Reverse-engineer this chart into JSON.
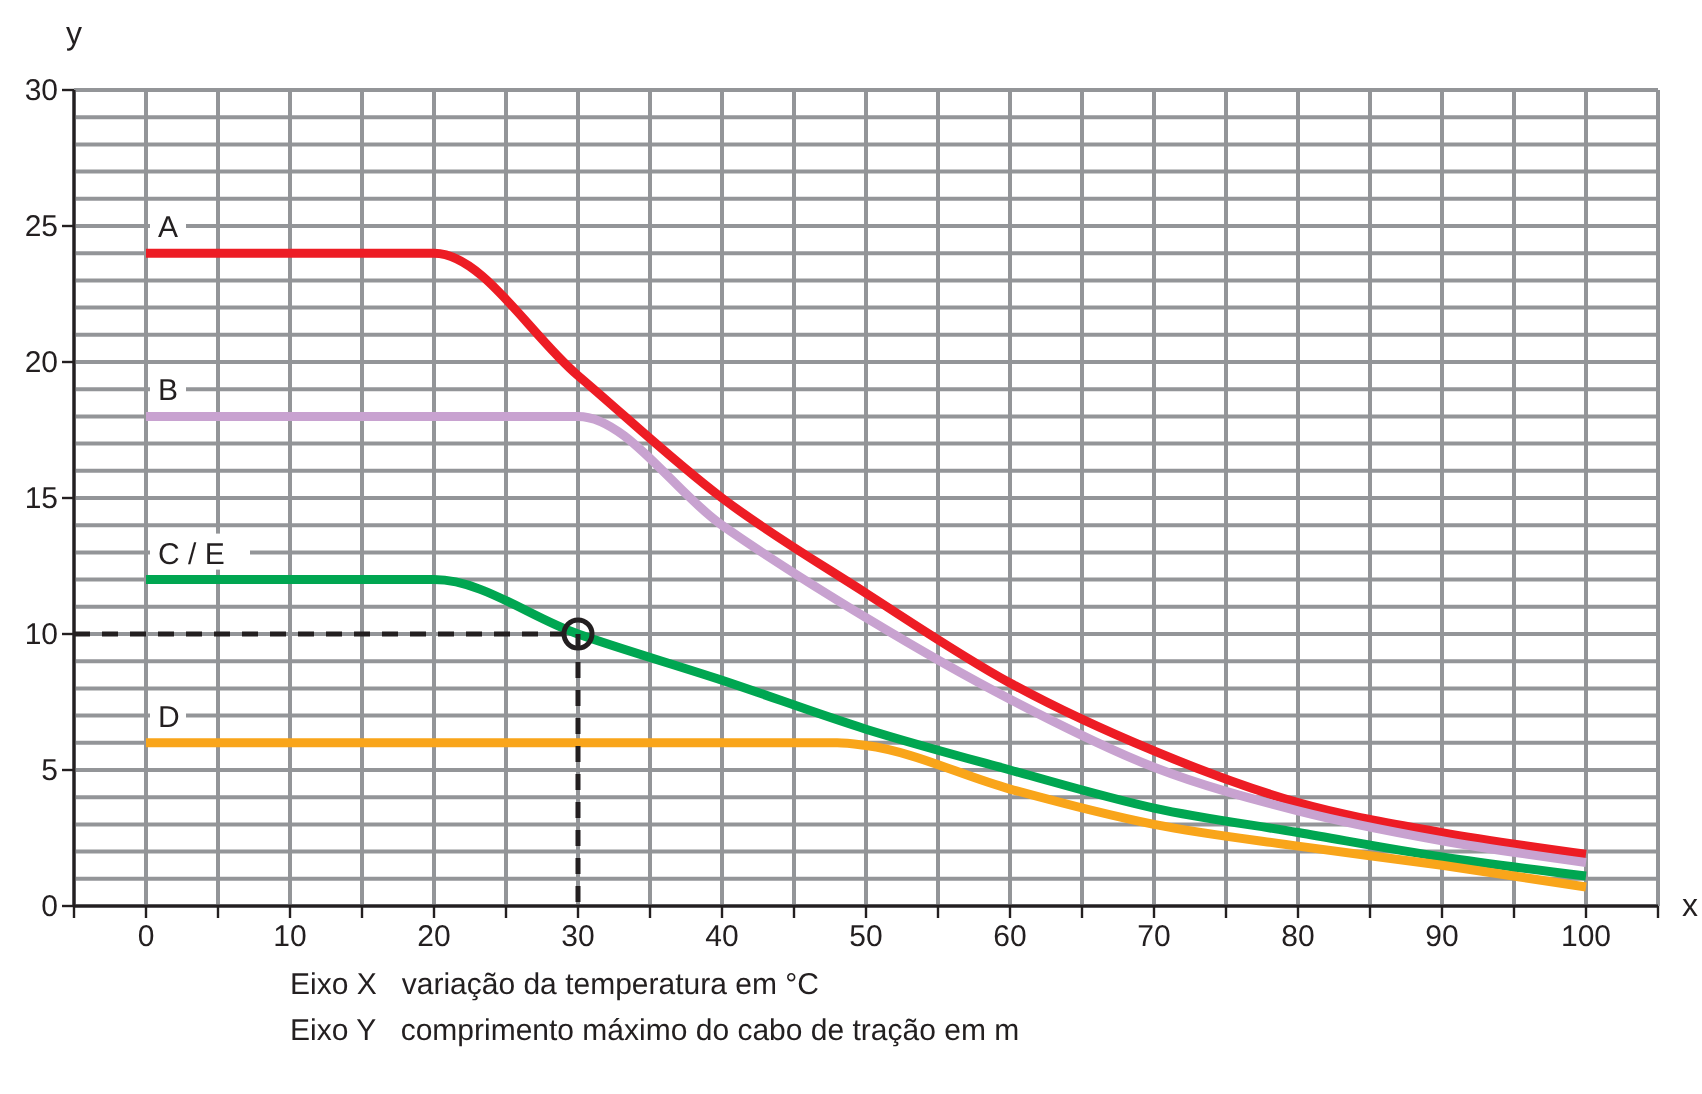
{
  "chart_data": {
    "type": "line",
    "xlabel": "x",
    "ylabel": "y",
    "xlim": [
      -5,
      105
    ],
    "ylim": [
      0,
      30
    ],
    "xticks": [
      {
        "value": -5,
        "label": null
      },
      0,
      {
        "value": 5,
        "label": null
      },
      10,
      {
        "value": 15,
        "label": null
      },
      20,
      {
        "value": 25,
        "label": null
      },
      30,
      {
        "value": 35,
        "label": null
      },
      40,
      {
        "value": 45,
        "label": null
      },
      50,
      {
        "value": 55,
        "label": null
      },
      60,
      {
        "value": 65,
        "label": null
      },
      70,
      {
        "value": 75,
        "label": null
      },
      80,
      {
        "value": 85,
        "label": null
      },
      90,
      {
        "value": 95,
        "label": null
      },
      100,
      {
        "value": 105,
        "label": null
      }
    ],
    "yticks": [
      0,
      {
        "value": 1,
        "label": null
      },
      {
        "value": 2,
        "label": null
      },
      {
        "value": 3,
        "label": null
      },
      {
        "value": 4,
        "label": null
      },
      5,
      {
        "value": 6,
        "label": null
      },
      {
        "value": 7,
        "label": null
      },
      {
        "value": 8,
        "label": null
      },
      {
        "value": 9,
        "label": null
      },
      10,
      {
        "value": 11,
        "label": null
      },
      {
        "value": 12,
        "label": null
      },
      {
        "value": 13,
        "label": null
      },
      {
        "value": 14,
        "label": null
      },
      15,
      {
        "value": 16,
        "label": null
      },
      {
        "value": 17,
        "label": null
      },
      {
        "value": 18,
        "label": null
      },
      {
        "value": 19,
        "label": null
      },
      20,
      {
        "value": 21,
        "label": null
      },
      {
        "value": 22,
        "label": null
      },
      {
        "value": 23,
        "label": null
      },
      {
        "value": 24,
        "label": null
      },
      25,
      {
        "value": 26,
        "label": null
      },
      {
        "value": 27,
        "label": null
      },
      {
        "value": 28,
        "label": null
      },
      {
        "value": 29,
        "label": null
      },
      30
    ],
    "grid": true,
    "marker": "none",
    "line_style": "solid",
    "series": [
      {
        "name": "A",
        "color": "#ed1c24",
        "x": [
          0,
          20,
          30,
          40,
          50,
          60,
          70,
          80,
          90,
          100
        ],
        "values": [
          24,
          24,
          19.5,
          15,
          11.5,
          8.2,
          5.7,
          3.8,
          2.7,
          1.9
        ]
      },
      {
        "name": "B",
        "color": "#c8a2d0",
        "x": [
          0,
          30,
          40,
          50,
          60,
          70,
          80,
          90,
          100
        ],
        "values": [
          18,
          18,
          14,
          10.6,
          7.6,
          5.1,
          3.5,
          2.4,
          1.6
        ]
      },
      {
        "name": "C / E",
        "color": "#00a651",
        "x": [
          0,
          20,
          30,
          40,
          50,
          60,
          70,
          80,
          90,
          100
        ],
        "values": [
          12,
          12,
          10,
          8.3,
          6.5,
          5,
          3.6,
          2.7,
          1.8,
          1.1
        ]
      },
      {
        "name": "D",
        "color": "#f9a51a",
        "x": [
          0,
          48,
          50,
          60,
          70,
          80,
          90,
          100
        ],
        "values": [
          6,
          6,
          5.9,
          4.3,
          3,
          2.2,
          1.5,
          0.7
        ]
      },
      {
        "type": "line",
        "color": "#231f20",
        "line_style": "dashed",
        "x": [
          -5,
          30,
          30
        ],
        "values": [
          10,
          10,
          0
        ]
      },
      {
        "type": "scatter",
        "color": "#231f20",
        "marker": "circle",
        "x": [
          30
        ],
        "values": [
          10
        ]
      }
    ],
    "annotations": [
      "Eixo X   variação da temperatura em °C",
      "Eixo Y   comprimento máximo do cabo de tração em m"
    ]
  }
}
